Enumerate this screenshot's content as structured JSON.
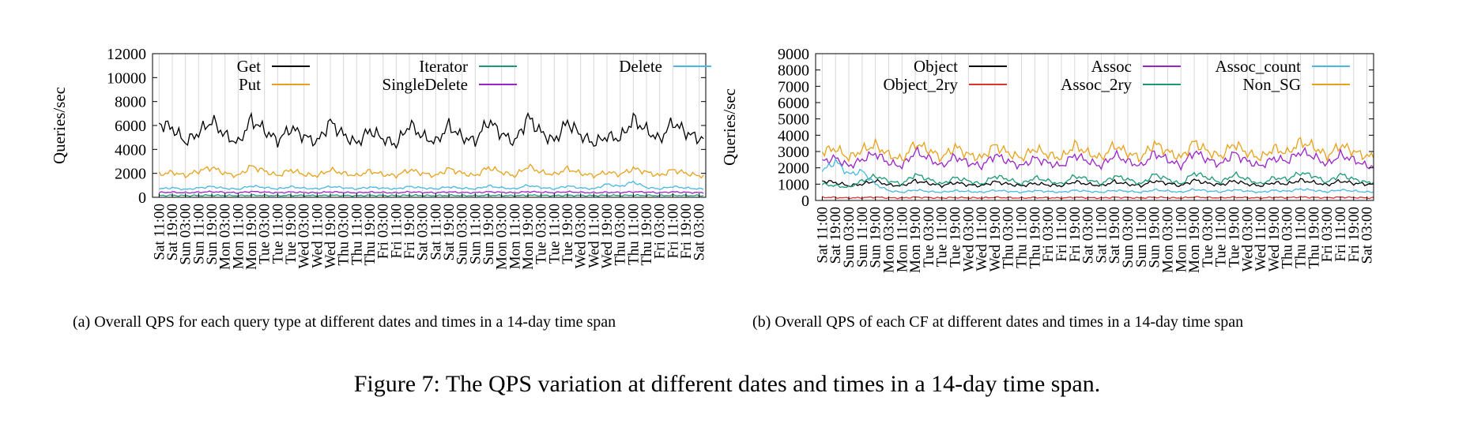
{
  "figure_caption": "Figure 7: The QPS variation at different dates and times in a 14-day time span.",
  "panels": [
    {
      "caption": "(a)  Overall QPS for each query type at different dates and times in a 14-day time span"
    },
    {
      "caption": "(b)  Overall QPS of each CF at different dates and times in a 14-day time span"
    }
  ],
  "chart_data": [
    {
      "type": "line",
      "ylabel": "Queries/sec",
      "xlabel": "",
      "ylim": [
        0,
        12000
      ],
      "yticks": [
        0,
        2000,
        4000,
        6000,
        8000,
        10000,
        12000
      ],
      "grid": "vertical",
      "legend": "top, 3 columns",
      "categories": [
        "Sat 11:00",
        "Sat 19:00",
        "Sun 03:00",
        "Sun 11:00",
        "Sun 19:00",
        "Mon 03:00",
        "Mon 11:00",
        "Mon 19:00",
        "Tue 03:00",
        "Tue 11:00",
        "Tue 19:00",
        "Wed 03:00",
        "Wed 11:00",
        "Wed 19:00",
        "Thu 03:00",
        "Thu 11:00",
        "Thu 19:00",
        "Fri 03:00",
        "Fri 11:00",
        "Fri 19:00",
        "Sat 03:00",
        "Sat 11:00",
        "Sat 19:00",
        "Sun 03:00",
        "Sun 11:00",
        "Sun 19:00",
        "Mon 03:00",
        "Mon 11:00",
        "Mon 19:00",
        "Tue 03:00",
        "Tue 11:00",
        "Tue 19:00",
        "Wed 03:00",
        "Wed 11:00",
        "Wed 19:00",
        "Thu 03:00",
        "Thu 11:00",
        "Thu 19:00",
        "Fri 03:00",
        "Fri 11:00",
        "Fri 19:00",
        "Sat 03:00"
      ],
      "series": [
        {
          "name": "Get",
          "color": "#000000",
          "values": [
            6200,
            5800,
            4600,
            5400,
            6400,
            5200,
            4500,
            6500,
            5600,
            4700,
            5800,
            5100,
            4600,
            6300,
            5200,
            4500,
            5600,
            4900,
            4400,
            6100,
            5100,
            4600,
            6000,
            5000,
            4700,
            6400,
            5300,
            4600,
            6700,
            5400,
            4700,
            6300,
            5200,
            4500,
            5100,
            4900,
            6500,
            5600,
            4800,
            6300,
            5400,
            4900
          ]
        },
        {
          "name": "Put",
          "color": "#e8a21a",
          "values": [
            1900,
            2100,
            1800,
            2200,
            2500,
            2000,
            1800,
            2600,
            2200,
            1800,
            2300,
            1900,
            1800,
            2300,
            2000,
            1800,
            2200,
            1900,
            1800,
            2300,
            2000,
            1800,
            2400,
            2000,
            1800,
            2500,
            2100,
            1800,
            2600,
            2100,
            1900,
            2400,
            2000,
            1800,
            2100,
            1900,
            2400,
            2100,
            1800,
            2300,
            2000,
            1800
          ]
        },
        {
          "name": "Iterator",
          "color": "#199a74",
          "values": [
            150,
            160,
            140,
            150,
            170,
            150,
            140,
            170,
            160,
            140,
            160,
            150,
            140,
            170,
            150,
            140,
            160,
            150,
            140,
            170,
            150,
            140,
            160,
            150,
            140,
            170,
            150,
            140,
            170,
            160,
            140,
            170,
            150,
            140,
            160,
            150,
            170,
            160,
            140,
            170,
            150,
            140
          ]
        },
        {
          "name": "SingleDelete",
          "color": "#9b24c9",
          "values": [
            400,
            430,
            380,
            420,
            470,
            410,
            380,
            480,
            430,
            380,
            440,
            400,
            380,
            450,
            410,
            380,
            430,
            400,
            380,
            450,
            410,
            380,
            450,
            400,
            380,
            460,
            420,
            380,
            470,
            430,
            390,
            460,
            410,
            380,
            420,
            400,
            460,
            430,
            380,
            450,
            410,
            390
          ]
        },
        {
          "name": "Delete",
          "color": "#48b8e0",
          "values": [
            700,
            800,
            650,
            780,
            900,
            750,
            680,
            950,
            820,
            700,
            880,
            760,
            700,
            900,
            800,
            700,
            850,
            760,
            700,
            900,
            780,
            700,
            880,
            760,
            700,
            950,
            800,
            700,
            1000,
            820,
            700,
            950,
            780,
            700,
            1100,
            900,
            1300,
            820,
            700,
            900,
            780,
            700
          ]
        }
      ]
    },
    {
      "type": "line",
      "ylabel": "Queries/sec",
      "xlabel": "",
      "ylim": [
        0,
        9000
      ],
      "yticks": [
        0,
        1000,
        2000,
        3000,
        4000,
        5000,
        6000,
        7000,
        8000,
        9000
      ],
      "grid": "vertical",
      "legend": "top, 3 columns",
      "categories": [
        "Sat 11:00",
        "Sat 19:00",
        "Sun 03:00",
        "Sun 11:00",
        "Sun 19:00",
        "Mon 03:00",
        "Mon 11:00",
        "Mon 19:00",
        "Tue 03:00",
        "Tue 11:00",
        "Tue 19:00",
        "Wed 03:00",
        "Wed 11:00",
        "Wed 19:00",
        "Thu 03:00",
        "Thu 11:00",
        "Thu 19:00",
        "Fri 03:00",
        "Fri 11:00",
        "Fri 19:00",
        "Sat 03:00",
        "Sat 11:00",
        "Sat 19:00",
        "Sun 03:00",
        "Sun 11:00",
        "Sun 19:00",
        "Mon 03:00",
        "Mon 11:00",
        "Mon 19:00",
        "Tue 03:00",
        "Tue 11:00",
        "Tue 19:00",
        "Wed 03:00",
        "Wed 11:00",
        "Wed 19:00",
        "Thu 03:00",
        "Thu 11:00",
        "Thu 19:00",
        "Fri 03:00",
        "Fri 11:00",
        "Fri 19:00",
        "Sat 03:00"
      ],
      "series": [
        {
          "name": "Object",
          "color": "#000000",
          "values": [
            1200,
            1100,
            900,
            1000,
            1200,
            950,
            900,
            1200,
            1050,
            900,
            1100,
            950,
            900,
            1150,
            1000,
            900,
            1050,
            950,
            900,
            1150,
            1000,
            900,
            1150,
            1000,
            900,
            1200,
            1050,
            900,
            1250,
            1050,
            950,
            1200,
            1000,
            900,
            1100,
            1000,
            1250,
            1100,
            950,
            1200,
            1050,
            1000
          ]
        },
        {
          "name": "Object_2ry",
          "color": "#e03030",
          "values": [
            200,
            180,
            150,
            170,
            200,
            160,
            150,
            200,
            170,
            150,
            180,
            160,
            150,
            190,
            170,
            150,
            180,
            160,
            150,
            190,
            170,
            150,
            190,
            170,
            150,
            200,
            170,
            150,
            210,
            180,
            160,
            200,
            170,
            150,
            190,
            170,
            210,
            180,
            160,
            200,
            180,
            160
          ]
        },
        {
          "name": "Assoc",
          "color": "#9b24c9",
          "values": [
            2400,
            2600,
            2100,
            2500,
            2900,
            2300,
            2100,
            3000,
            2600,
            2100,
            2700,
            2300,
            2100,
            2800,
            2400,
            2100,
            2600,
            2300,
            2100,
            2800,
            2400,
            2100,
            2800,
            2400,
            2100,
            2900,
            2500,
            2100,
            3000,
            2500,
            2200,
            2900,
            2400,
            2100,
            2600,
            2400,
            3000,
            2700,
            2200,
            2800,
            2500,
            2100
          ]
        },
        {
          "name": "Assoc_2ry",
          "color": "#199a74",
          "values": [
            1000,
            900,
            800,
            1200,
            1500,
            1200,
            1000,
            1600,
            1300,
            1000,
            1400,
            1200,
            1000,
            1500,
            1300,
            1000,
            1400,
            1200,
            1000,
            1500,
            1300,
            1000,
            1500,
            1300,
            1000,
            1600,
            1300,
            1000,
            1700,
            1400,
            1100,
            1600,
            1300,
            1000,
            1400,
            1300,
            1700,
            1500,
            1100,
            1600,
            1300,
            1100
          ]
        },
        {
          "name": "Assoc_count",
          "color": "#48b8e0",
          "values": [
            1800,
            2400,
            1600,
            1800,
            1000,
            600,
            500,
            650,
            550,
            500,
            600,
            550,
            500,
            620,
            560,
            500,
            600,
            550,
            500,
            620,
            560,
            500,
            620,
            560,
            500,
            650,
            580,
            500,
            680,
            590,
            520,
            660,
            570,
            500,
            620,
            560,
            700,
            620,
            520,
            650,
            580,
            520
          ]
        },
        {
          "name": "Non_SG",
          "color": "#e8a21a",
          "values": [
            3000,
            3200,
            2600,
            3100,
            3400,
            2800,
            2500,
            3500,
            3100,
            2600,
            3300,
            2800,
            2600,
            3400,
            2900,
            2600,
            3200,
            2800,
            2600,
            3400,
            2900,
            2600,
            3400,
            2900,
            2600,
            3500,
            3000,
            2600,
            3600,
            3000,
            2700,
            3500,
            2900,
            2600,
            3200,
            2900,
            3600,
            3300,
            2700,
            3400,
            3000,
            2700
          ]
        }
      ]
    }
  ]
}
